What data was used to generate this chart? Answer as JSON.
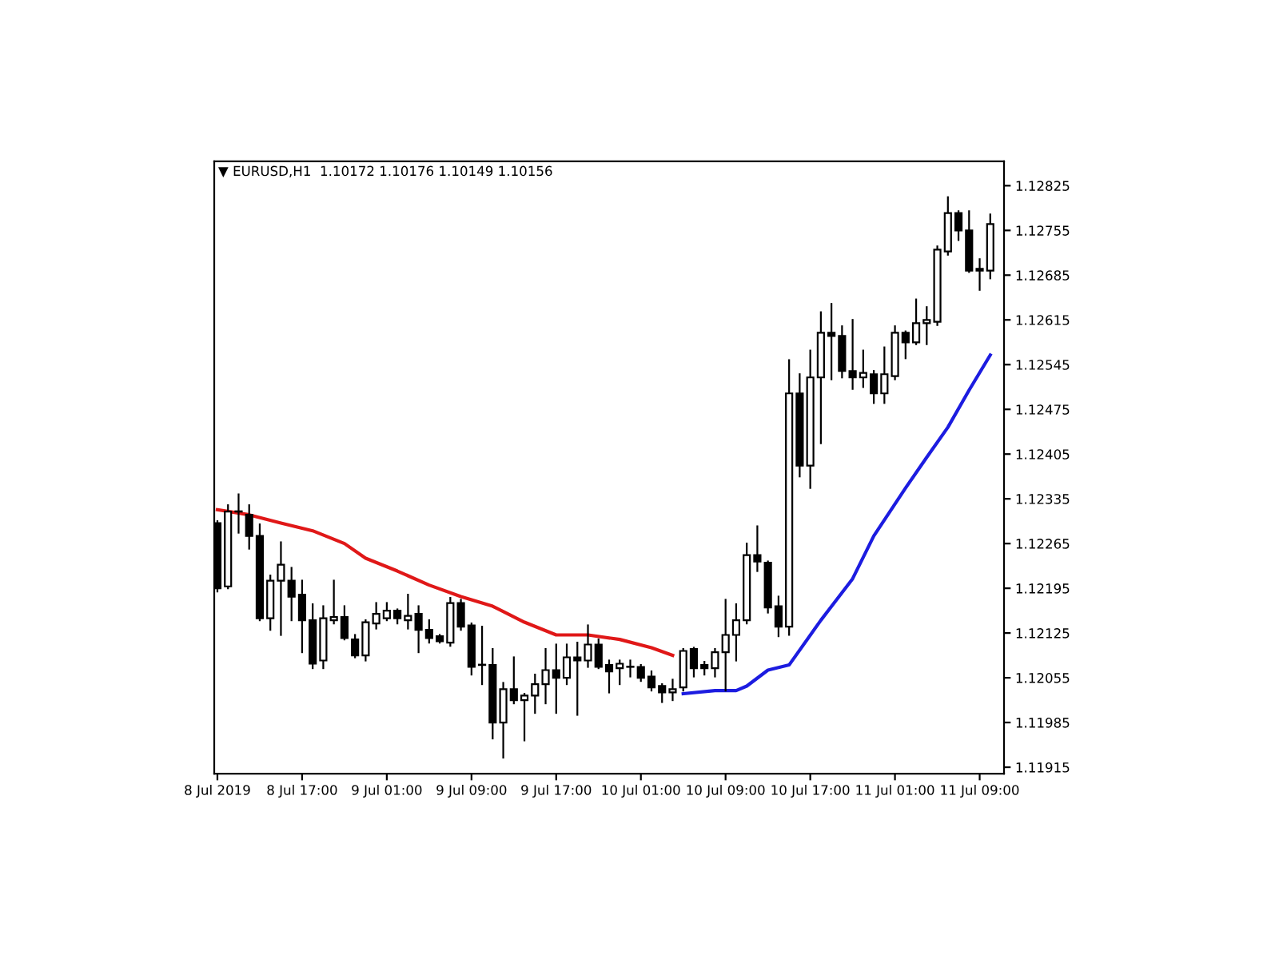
{
  "chart_data": {
    "type": "candlestick",
    "title": "▼ EURUSD,H1  1.10172 1.10176 1.10149 1.10156",
    "x": [
      "2019-07-08T09:00",
      "2019-07-08T10:00",
      "2019-07-08T11:00",
      "2019-07-08T12:00",
      "2019-07-08T13:00",
      "2019-07-08T14:00",
      "2019-07-08T15:00",
      "2019-07-08T16:00",
      "2019-07-08T17:00",
      "2019-07-08T18:00",
      "2019-07-08T19:00",
      "2019-07-08T20:00",
      "2019-07-08T21:00",
      "2019-07-08T22:00",
      "2019-07-08T23:00",
      "2019-07-09T00:00",
      "2019-07-09T01:00",
      "2019-07-09T02:00",
      "2019-07-09T03:00",
      "2019-07-09T04:00",
      "2019-07-09T05:00",
      "2019-07-09T06:00",
      "2019-07-09T07:00",
      "2019-07-09T08:00",
      "2019-07-09T09:00",
      "2019-07-09T10:00",
      "2019-07-09T11:00",
      "2019-07-09T12:00",
      "2019-07-09T13:00",
      "2019-07-09T14:00",
      "2019-07-09T15:00",
      "2019-07-09T16:00",
      "2019-07-09T17:00",
      "2019-07-09T18:00",
      "2019-07-09T19:00",
      "2019-07-09T20:00",
      "2019-07-09T21:00",
      "2019-07-09T22:00",
      "2019-07-09T23:00",
      "2019-07-10T00:00",
      "2019-07-10T01:00",
      "2019-07-10T02:00",
      "2019-07-10T03:00",
      "2019-07-10T04:00",
      "2019-07-10T05:00",
      "2019-07-10T06:00",
      "2019-07-10T07:00",
      "2019-07-10T08:00",
      "2019-07-10T09:00",
      "2019-07-10T10:00",
      "2019-07-10T11:00",
      "2019-07-10T12:00",
      "2019-07-10T13:00",
      "2019-07-10T14:00",
      "2019-07-10T15:00",
      "2019-07-10T16:00",
      "2019-07-10T17:00",
      "2019-07-10T18:00",
      "2019-07-10T19:00",
      "2019-07-10T20:00",
      "2019-07-10T21:00",
      "2019-07-10T22:00",
      "2019-07-10T23:00",
      "2019-07-11T00:00",
      "2019-07-11T01:00",
      "2019-07-11T02:00",
      "2019-07-11T03:00",
      "2019-07-11T04:00",
      "2019-07-11T05:00",
      "2019-07-11T06:00",
      "2019-07-11T07:00",
      "2019-07-11T08:00",
      "2019-07-11T09:00",
      "2019-07-11T10:00"
    ],
    "ohlc": [
      [
        1.12297,
        1.123,
        1.1219,
        1.12195
      ],
      [
        1.12198,
        1.12325,
        1.12195,
        1.12315
      ],
      [
        1.12315,
        1.12342,
        1.12282,
        1.12315
      ],
      [
        1.1231,
        1.12325,
        1.12257,
        1.12277
      ],
      [
        1.12277,
        1.12295,
        1.12145,
        1.12148
      ],
      [
        1.12148,
        1.12215,
        1.1213,
        1.12207
      ],
      [
        1.12207,
        1.12267,
        1.12122,
        1.12232
      ],
      [
        1.12207,
        1.12227,
        1.12145,
        1.12182
      ],
      [
        1.12185,
        1.12207,
        1.12095,
        1.12145
      ],
      [
        1.12145,
        1.1217,
        1.1207,
        1.12077
      ],
      [
        1.12082,
        1.12167,
        1.1207,
        1.12148
      ],
      [
        1.12145,
        1.12207,
        1.1214,
        1.1215
      ],
      [
        1.1215,
        1.12167,
        1.12115,
        1.12117
      ],
      [
        1.12115,
        1.12122,
        1.12087,
        1.1209
      ],
      [
        1.1209,
        1.12145,
        1.12082,
        1.12142
      ],
      [
        1.1214,
        1.12172,
        1.12132,
        1.12155
      ],
      [
        1.12148,
        1.12172,
        1.12145,
        1.1216
      ],
      [
        1.1216,
        1.12162,
        1.1214,
        1.12148
      ],
      [
        1.12145,
        1.12185,
        1.12132,
        1.12152
      ],
      [
        1.12155,
        1.12167,
        1.12095,
        1.1213
      ],
      [
        1.1213,
        1.12145,
        1.1211,
        1.12117
      ],
      [
        1.1212,
        1.12122,
        1.1211,
        1.12112
      ],
      [
        1.1211,
        1.1218,
        1.12105,
        1.12172
      ],
      [
        1.12172,
        1.12177,
        1.1213,
        1.12135
      ],
      [
        1.12137,
        1.1214,
        1.1206,
        1.12072
      ],
      [
        1.12075,
        1.12135,
        1.12045,
        1.12075
      ],
      [
        1.12075,
        1.121,
        1.1196,
        1.11985
      ],
      [
        1.11985,
        1.12047,
        1.1193,
        1.12037
      ],
      [
        1.12037,
        1.12087,
        1.12015,
        1.1202
      ],
      [
        1.1202,
        1.1203,
        1.11957,
        1.12027
      ],
      [
        1.12027,
        1.1206,
        1.12,
        1.12045
      ],
      [
        1.12045,
        1.121,
        1.12015,
        1.12067
      ],
      [
        1.12067,
        1.12107,
        1.12,
        1.12055
      ],
      [
        1.12055,
        1.12107,
        1.12045,
        1.12087
      ],
      [
        1.12087,
        1.1211,
        1.11997,
        1.12082
      ],
      [
        1.12082,
        1.12137,
        1.12072,
        1.12107
      ],
      [
        1.12107,
        1.12115,
        1.1207,
        1.12072
      ],
      [
        1.12075,
        1.12082,
        1.12032,
        1.12065
      ],
      [
        1.1207,
        1.12082,
        1.12045,
        1.12077
      ],
      [
        1.12072,
        1.12082,
        1.12057,
        1.12072
      ],
      [
        1.12072,
        1.12075,
        1.1205,
        1.12055
      ],
      [
        1.12057,
        1.12065,
        1.12035,
        1.1204
      ],
      [
        1.12042,
        1.12045,
        1.12017,
        1.12032
      ],
      [
        1.12032,
        1.12052,
        1.1202,
        1.12037
      ],
      [
        1.1204,
        1.121,
        1.12035,
        1.12097
      ],
      [
        1.121,
        1.12102,
        1.12057,
        1.1207
      ],
      [
        1.12075,
        1.1208,
        1.1206,
        1.1207
      ],
      [
        1.1207,
        1.121,
        1.12057,
        1.12095
      ],
      [
        1.12095,
        1.12177,
        1.12035,
        1.12122
      ],
      [
        1.12122,
        1.1217,
        1.12082,
        1.12145
      ],
      [
        1.12145,
        1.12265,
        1.1214,
        1.12247
      ],
      [
        1.12247,
        1.12292,
        1.12222,
        1.12237
      ],
      [
        1.12235,
        1.12237,
        1.12157,
        1.12165
      ],
      [
        1.12167,
        1.12182,
        1.1212,
        1.12135
      ],
      [
        1.12135,
        1.12552,
        1.12122,
        1.125
      ],
      [
        1.125,
        1.1253,
        1.1237,
        1.12387
      ],
      [
        1.12387,
        1.12567,
        1.12352,
        1.12525
      ],
      [
        1.12525,
        1.12627,
        1.12422,
        1.12595
      ],
      [
        1.12595,
        1.1264,
        1.12522,
        1.1259
      ],
      [
        1.1259,
        1.12605,
        1.12525,
        1.12535
      ],
      [
        1.12535,
        1.12615,
        1.12507,
        1.12525
      ],
      [
        1.12525,
        1.12567,
        1.1251,
        1.12532
      ],
      [
        1.1253,
        1.12535,
        1.12485,
        1.125
      ],
      [
        1.125,
        1.12572,
        1.12485,
        1.1253
      ],
      [
        1.12527,
        1.12605,
        1.12522,
        1.12595
      ],
      [
        1.12595,
        1.12597,
        1.12555,
        1.1258
      ],
      [
        1.1258,
        1.12647,
        1.12577,
        1.1261
      ],
      [
        1.1261,
        1.12635,
        1.12577,
        1.12615
      ],
      [
        1.12612,
        1.1273,
        1.12607,
        1.12725
      ],
      [
        1.12722,
        1.12807,
        1.12717,
        1.12782
      ],
      [
        1.12782,
        1.12785,
        1.1274,
        1.12755
      ],
      [
        1.12755,
        1.12785,
        1.1269,
        1.12692
      ],
      [
        1.12695,
        1.1271,
        1.12662,
        1.12692
      ],
      [
        1.12692,
        1.1278,
        1.1268,
        1.12765
      ]
    ],
    "series": [
      {
        "type": "line",
        "color": "#e01818",
        "x": [
          "2019-07-08T09:00",
          "2019-07-08T12:00",
          "2019-07-08T15:00",
          "2019-07-08T18:00",
          "2019-07-08T21:00",
          "2019-07-08T23:00",
          "2019-07-09T02:00",
          "2019-07-09T05:00",
          "2019-07-09T08:00",
          "2019-07-09T11:00",
          "2019-07-09T14:00",
          "2019-07-09T17:00",
          "2019-07-09T20:00",
          "2019-07-09T23:00",
          "2019-07-10T02:00",
          "2019-07-10T04:00"
        ],
        "values": [
          1.12318,
          1.1231,
          1.12297,
          1.12285,
          1.12265,
          1.12242,
          1.12222,
          1.122,
          1.12182,
          1.12167,
          1.12142,
          1.12122,
          1.12122,
          1.12115,
          1.12102,
          1.1209
        ]
      },
      {
        "type": "line",
        "color": "#1c1ce0",
        "x": [
          "2019-07-10T05:00",
          "2019-07-10T08:00",
          "2019-07-10T10:00",
          "2019-07-10T11:00",
          "2019-07-10T13:00",
          "2019-07-10T15:00",
          "2019-07-10T18:00",
          "2019-07-10T21:00",
          "2019-07-10T23:00",
          "2019-07-11T02:00",
          "2019-07-11T04:00",
          "2019-07-11T06:00",
          "2019-07-11T08:00",
          "2019-07-11T10:00"
        ],
        "values": [
          1.1203,
          1.12035,
          1.12035,
          1.12042,
          1.12067,
          1.12075,
          1.12145,
          1.1221,
          1.12277,
          1.12352,
          1.124,
          1.12447,
          1.12505,
          1.1256
        ]
      }
    ],
    "xlim": [
      "2019-07-08T08:42",
      "2019-07-11T11:18"
    ],
    "xticks": [
      {
        "value": "2019-07-08T09:00",
        "label": "8 Jul 2019"
      },
      {
        "value": "2019-07-08T17:00",
        "label": "8 Jul 17:00"
      },
      {
        "value": "2019-07-09T01:00",
        "label": "9 Jul 01:00"
      },
      {
        "value": "2019-07-09T09:00",
        "label": "9 Jul 09:00"
      },
      {
        "value": "2019-07-09T17:00",
        "label": "9 Jul 17:00"
      },
      {
        "value": "2019-07-10T01:00",
        "label": "10 Jul 01:00"
      },
      {
        "value": "2019-07-10T09:00",
        "label": "10 Jul 09:00"
      },
      {
        "value": "2019-07-10T17:00",
        "label": "10 Jul 17:00"
      },
      {
        "value": "2019-07-11T01:00",
        "label": "11 Jul 01:00"
      },
      {
        "value": "2019-07-11T09:00",
        "label": "11 Jul 09:00"
      }
    ],
    "ylim": [
      1.11905,
      1.12863
    ],
    "yticks": [
      1.11915,
      1.11985,
      1.12055,
      1.12125,
      1.12195,
      1.12265,
      1.12335,
      1.12405,
      1.12475,
      1.12545,
      1.12615,
      1.12685,
      1.12755,
      1.12825
    ],
    "grid": false,
    "legend": false
  }
}
